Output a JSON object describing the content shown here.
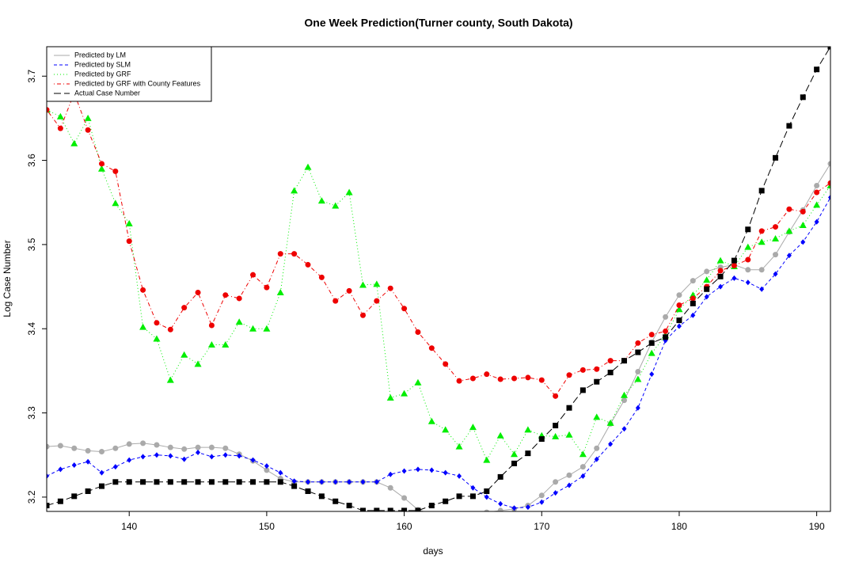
{
  "chart_data": {
    "type": "line",
    "title": "One Week Prediction(Turner county, South Dakota)",
    "x_label": "days",
    "y_label": "Log Case Number",
    "x": [
      134,
      135,
      136,
      137,
      138,
      139,
      140,
      141,
      142,
      143,
      144,
      145,
      146,
      147,
      148,
      149,
      150,
      151,
      152,
      153,
      154,
      155,
      156,
      157,
      158,
      159,
      160,
      161,
      162,
      163,
      164,
      165,
      166,
      167,
      168,
      169,
      170,
      171,
      172,
      173,
      174,
      175,
      176,
      177,
      178,
      179,
      180,
      181,
      182,
      183,
      184,
      185,
      186,
      187,
      188,
      189,
      190,
      191
    ],
    "xlim": [
      134,
      191
    ],
    "xticks": [
      140,
      150,
      160,
      170,
      180,
      190
    ],
    "ylim": [
      3.183,
      3.735
    ],
    "yticks": [
      3.2,
      3.3,
      3.4,
      3.5,
      3.6,
      3.7
    ],
    "legend": "top-left",
    "series": [
      {
        "name": "Predicted by LM",
        "color": "#aaaaaa",
        "linestyle": "solid",
        "marker": "circle",
        "values": [
          3.26,
          3.261,
          3.258,
          3.255,
          3.254,
          3.258,
          3.263,
          3.264,
          3.262,
          3.259,
          3.257,
          3.259,
          3.259,
          3.258,
          3.251,
          3.243,
          3.232,
          3.222,
          3.218,
          3.218,
          3.218,
          3.218,
          3.218,
          3.218,
          3.218,
          3.211,
          3.199,
          3.185,
          3.18,
          3.178,
          3.178,
          3.18,
          3.182,
          3.184,
          3.186,
          3.19,
          3.202,
          3.218,
          3.226,
          3.236,
          3.258,
          3.287,
          3.315,
          3.349,
          3.384,
          3.414,
          3.44,
          3.457,
          3.468,
          3.473,
          3.476,
          3.47,
          3.47,
          3.488,
          3.515,
          3.541,
          3.57,
          3.596
        ]
      },
      {
        "name": "Predicted by SLM",
        "color": "#0000ff",
        "linestyle": "dashed",
        "marker": "diamond",
        "values": [
          3.225,
          3.233,
          3.238,
          3.242,
          3.229,
          3.236,
          3.244,
          3.248,
          3.25,
          3.249,
          3.245,
          3.253,
          3.248,
          3.25,
          3.249,
          3.244,
          3.237,
          3.229,
          3.219,
          3.218,
          3.218,
          3.218,
          3.218,
          3.218,
          3.218,
          3.227,
          3.231,
          3.233,
          3.232,
          3.229,
          3.225,
          3.211,
          3.2,
          3.192,
          3.187,
          3.188,
          3.194,
          3.205,
          3.214,
          3.225,
          3.245,
          3.263,
          3.281,
          3.306,
          3.346,
          3.386,
          3.403,
          3.416,
          3.438,
          3.45,
          3.46,
          3.455,
          3.447,
          3.465,
          3.487,
          3.503,
          3.527,
          3.556
        ]
      },
      {
        "name": "Predicted by GRF",
        "color": "#00ee00",
        "linestyle": "dotted",
        "marker": "triangle",
        "values": [
          3.66,
          3.652,
          3.62,
          3.65,
          3.59,
          3.549,
          3.525,
          3.402,
          3.388,
          3.339,
          3.369,
          3.358,
          3.381,
          3.381,
          3.408,
          3.4,
          3.4,
          3.443,
          3.564,
          3.592,
          3.552,
          3.546,
          3.562,
          3.452,
          3.453,
          3.318,
          3.323,
          3.336,
          3.29,
          3.28,
          3.26,
          3.283,
          3.244,
          3.273,
          3.251,
          3.28,
          3.273,
          3.272,
          3.274,
          3.251,
          3.295,
          3.288,
          3.321,
          3.34,
          3.371,
          3.392,
          3.423,
          3.44,
          3.458,
          3.481,
          3.474,
          3.497,
          3.503,
          3.507,
          3.516,
          3.523,
          3.547,
          3.57
        ]
      },
      {
        "name": "Predicted by GRF with County Features",
        "color": "#ee0000",
        "linestyle": "dotdash",
        "marker": "circle",
        "values": [
          3.66,
          3.638,
          3.68,
          3.636,
          3.596,
          3.587,
          3.504,
          3.446,
          3.407,
          3.399,
          3.425,
          3.443,
          3.404,
          3.44,
          3.436,
          3.464,
          3.449,
          3.489,
          3.489,
          3.476,
          3.461,
          3.433,
          3.445,
          3.416,
          3.433,
          3.448,
          3.424,
          3.396,
          3.377,
          3.358,
          3.338,
          3.341,
          3.346,
          3.34,
          3.341,
          3.342,
          3.339,
          3.32,
          3.345,
          3.351,
          3.352,
          3.362,
          3.362,
          3.383,
          3.393,
          3.397,
          3.428,
          3.436,
          3.45,
          3.469,
          3.475,
          3.482,
          3.516,
          3.521,
          3.542,
          3.539,
          3.562,
          3.573
        ]
      },
      {
        "name": "Actual Case Number",
        "color": "#000000",
        "linestyle": "longdash",
        "marker": "square",
        "values": [
          3.19,
          3.195,
          3.201,
          3.207,
          3.213,
          3.218,
          3.218,
          3.218,
          3.218,
          3.218,
          3.218,
          3.218,
          3.218,
          3.218,
          3.218,
          3.218,
          3.218,
          3.218,
          3.213,
          3.207,
          3.201,
          3.195,
          3.19,
          3.184,
          3.184,
          3.184,
          3.184,
          3.184,
          3.19,
          3.195,
          3.201,
          3.201,
          3.207,
          3.224,
          3.24,
          3.252,
          3.269,
          3.285,
          3.306,
          3.327,
          3.337,
          3.348,
          3.362,
          3.372,
          3.383,
          3.39,
          3.41,
          3.43,
          3.447,
          3.462,
          3.481,
          3.518,
          3.564,
          3.603,
          3.641,
          3.675,
          3.708,
          3.735
        ]
      }
    ]
  }
}
